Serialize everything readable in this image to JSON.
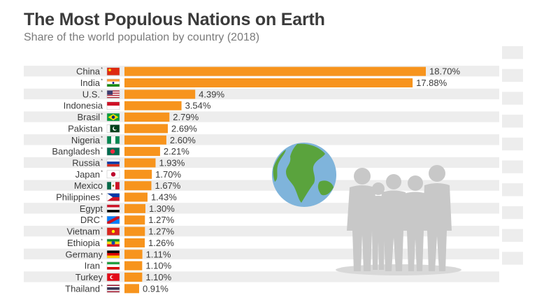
{
  "title": "The Most Populous Nations on Earth",
  "subtitle": "Share of the world population by country (2018)",
  "colors": {
    "bar": "#f7941d",
    "stripe": "#ededed",
    "text": "#3b3b3b",
    "silhouette": "#c8c8c8",
    "globe_water": "#7fb4db",
    "globe_land": "#5aa33d"
  },
  "chart_data": {
    "type": "bar",
    "orientation": "horizontal",
    "title": "The Most Populous Nations on Earth",
    "subtitle": "Share of the world population by country (2018)",
    "categories": [
      "China",
      "India",
      "U.S.",
      "Indonesia",
      "Brasil",
      "Pakistan",
      "Nigeria",
      "Bangladesh",
      "Russia",
      "Japan",
      "Mexico",
      "Philippines",
      "Egypt",
      "DRC",
      "Vietnam",
      "Ethiopia",
      "Germany",
      "Iran",
      "Turkey",
      "Thailand"
    ],
    "values": [
      18.7,
      17.88,
      4.39,
      3.54,
      2.79,
      2.69,
      2.6,
      2.21,
      1.93,
      1.7,
      1.67,
      1.43,
      1.3,
      1.27,
      1.27,
      1.26,
      1.11,
      1.1,
      1.1,
      0.91
    ],
    "value_labels": [
      "18.70%",
      "17.88%",
      "4.39%",
      "3.54%",
      "2.79%",
      "2.69%",
      "2.60%",
      "2.21%",
      "1.93%",
      "1.70%",
      "1.67%",
      "1.43%",
      "1.30%",
      "1.27%",
      "1.27%",
      "1.26%",
      "1.11%",
      "1.10%",
      "1.10%",
      "0.91%"
    ],
    "asterisk": [
      true,
      true,
      true,
      false,
      true,
      false,
      true,
      true,
      true,
      true,
      false,
      true,
      false,
      true,
      true,
      true,
      false,
      true,
      false,
      true
    ],
    "flags": [
      "china-flag",
      "india-flag",
      "usa-flag",
      "indonesia-flag",
      "brazil-flag",
      "pakistan-flag",
      "nigeria-flag",
      "bangladesh-flag",
      "russia-flag",
      "japan-flag",
      "mexico-flag",
      "philippines-flag",
      "egypt-flag",
      "drc-flag",
      "vietnam-flag",
      "ethiopia-flag",
      "germany-flag",
      "iran-flag",
      "turkey-flag",
      "thailand-flag"
    ],
    "grid": false,
    "legend": "none"
  },
  "decorations": [
    "globe-icon",
    "people-silhouette"
  ]
}
